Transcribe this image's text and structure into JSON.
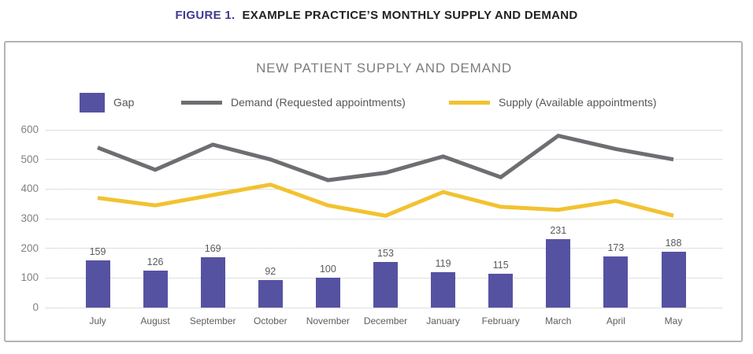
{
  "page": {
    "figure_label": "FIGURE 1.",
    "figure_title": "EXAMPLE PRACTICE’S MONTHLY SUPPLY AND DEMAND"
  },
  "chart_data": {
    "type": "combo",
    "title": "NEW PATIENT SUPPLY AND DEMAND",
    "categories": [
      "July",
      "August",
      "September",
      "October",
      "November",
      "December",
      "January",
      "February",
      "March",
      "April",
      "May"
    ],
    "series": [
      {
        "name": "Gap",
        "type": "bar",
        "color": "#5652A2",
        "values": [
          159,
          126,
          169,
          92,
          100,
          153,
          119,
          115,
          231,
          173,
          188
        ],
        "data_labels": true
      },
      {
        "name": "Demand (Requested appointments)",
        "type": "line",
        "color": "#6D6E71",
        "values": [
          540,
          465,
          550,
          500,
          430,
          455,
          510,
          440,
          580,
          535,
          500
        ]
      },
      {
        "name": "Supply (Available appointments)",
        "type": "line",
        "color": "#F2C230",
        "values": [
          370,
          345,
          380,
          415,
          345,
          310,
          390,
          340,
          330,
          360,
          310
        ]
      }
    ],
    "ylim": [
      0,
      600
    ],
    "yticks": [
      600,
      500,
      400,
      300,
      200,
      100,
      0
    ],
    "grid": "horizontal-dotted",
    "legend_position": "top"
  },
  "colors": {
    "gap_purple": "#5652A2",
    "demand_gray": "#6D6E71",
    "supply_yellow": "#F2C230",
    "figure_label_purple": "#3E3A8F"
  }
}
